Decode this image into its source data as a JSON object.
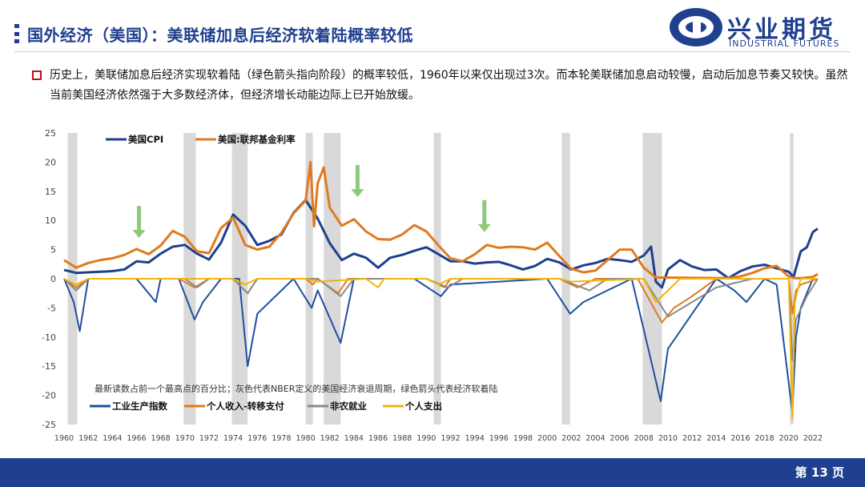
{
  "header": {
    "title": "国外经济（美国）：美联储加息后经济软着陆概率较低",
    "logo_cn": "兴业期货",
    "logo_en": "INDUSTRIAL FUTURES"
  },
  "bullet": {
    "text": "历史上，美联储加息后经济实现软着陆（绿色箭头指向阶段）的概率较低，1960年以来仅出现过3次。而本轮美联储加息启动较慢，启动后加息节奏又较快。虽然当前美国经济依然强于大多数经济体，但经济增长动能边际上已开始放缓。"
  },
  "footer": {
    "page": "第 13 页"
  },
  "colors": {
    "brand": "#1f3f8f",
    "cpi": "#1f3f8f",
    "fedfunds": "#e07a1f",
    "green_arrow": "#8cc97a",
    "recession": "#d9d9d9",
    "bullet": "#c0111a"
  },
  "chart_data": {
    "type": "line",
    "note": "最新读数占前一个最高点的百分比；灰色代表NBER定义的美国经济衰退周期，绿色箭头代表经济软着陆",
    "ylim": [
      -25,
      25
    ],
    "y_ticks": [
      25,
      20,
      15,
      10,
      5,
      0,
      -5,
      -10,
      -15,
      -20,
      -25
    ],
    "xlim": [
      1960,
      2023
    ],
    "x_ticks": [
      "1960",
      "1962",
      "1964",
      "1966",
      "1968",
      "1970",
      "1972",
      "1974",
      "1976",
      "1978",
      "1980",
      "1982",
      "1984",
      "1986",
      "1988",
      "1990",
      "1992",
      "1994",
      "1996",
      "1998",
      "2000",
      "2002",
      "2004",
      "2006",
      "2008",
      "2010",
      "2012",
      "2014",
      "2016",
      "2018",
      "2020",
      "2022"
    ],
    "recessions": [
      [
        1960.3,
        1961.1
      ],
      [
        1969.9,
        1970.9
      ],
      [
        1973.9,
        1975.2
      ],
      [
        1980.0,
        1980.6
      ],
      [
        1981.5,
        1982.9
      ],
      [
        1990.6,
        1991.2
      ],
      [
        2001.2,
        2001.9
      ],
      [
        2007.9,
        2009.5
      ],
      [
        2020.1,
        2020.4
      ]
    ],
    "soft_landing_arrows": [
      {
        "x": 1966.2,
        "y_top": 12.5,
        "y_tip": 7
      },
      {
        "x": 1984.3,
        "y_top": 19.5,
        "y_tip": 14
      },
      {
        "x": 1994.8,
        "y_top": 13.5,
        "y_tip": 8
      }
    ],
    "legend_top": [
      {
        "name": "美国CPI",
        "color": "#1f3f8f"
      },
      {
        "name": "美国:联邦基金利率",
        "color": "#e07a1f"
      }
    ],
    "legend_bottom": [
      {
        "name": "工业生产指数",
        "color": "#1f4fa0"
      },
      {
        "name": "个人收入-转移支付",
        "color": "#e07a1f"
      },
      {
        "name": "非农就业",
        "color": "#8a8a8a"
      },
      {
        "name": "个人支出",
        "color": "#f2b40a"
      }
    ],
    "series": [
      {
        "name": "美国CPI",
        "color": "#1f3f8f",
        "width": 3,
        "x": [
          1960,
          1961,
          1962,
          1963,
          1964,
          1965,
          1966,
          1967,
          1968,
          1969,
          1970,
          1971,
          1972,
          1973,
          1974,
          1975,
          1976,
          1977,
          1978,
          1979,
          1980,
          1981,
          1982,
          1983,
          1984,
          1985,
          1986,
          1987,
          1988,
          1989,
          1990,
          1991,
          1992,
          1993,
          1994,
          1995,
          1996,
          1997,
          1998,
          1999,
          2000,
          2001,
          2002,
          2003,
          2004,
          2005,
          2006,
          2007,
          2008,
          2008.6,
          2009,
          2009.5,
          2010,
          2011,
          2012,
          2013,
          2014,
          2015,
          2016,
          2017,
          2018,
          2019,
          2020,
          2020.4,
          2021,
          2021.5,
          2022,
          2022.4
        ],
        "y": [
          1.5,
          1.0,
          1.1,
          1.2,
          1.3,
          1.6,
          3.0,
          2.8,
          4.3,
          5.5,
          5.8,
          4.3,
          3.3,
          6.2,
          11.0,
          9.1,
          5.8,
          6.5,
          7.6,
          11.3,
          13.5,
          10.3,
          6.1,
          3.2,
          4.3,
          3.6,
          1.9,
          3.6,
          4.1,
          4.8,
          5.4,
          4.2,
          3.0,
          3.0,
          2.6,
          2.8,
          2.9,
          2.3,
          1.6,
          2.2,
          3.4,
          2.8,
          1.6,
          2.3,
          2.7,
          3.4,
          3.2,
          2.9,
          4.0,
          5.5,
          -0.5,
          -1.5,
          1.6,
          3.2,
          2.1,
          1.5,
          1.6,
          0.1,
          1.3,
          2.1,
          2.4,
          1.8,
          1.2,
          0.3,
          4.7,
          5.4,
          8.0,
          8.6
        ]
      },
      {
        "name": "美国:联邦基金利率",
        "color": "#e07a1f",
        "width": 3,
        "x": [
          1960,
          1961,
          1962,
          1963,
          1964,
          1965,
          1966,
          1967,
          1968,
          1969,
          1970,
          1971,
          1972,
          1973,
          1974,
          1975,
          1976,
          1977,
          1978,
          1979,
          1980,
          1980.4,
          1980.7,
          1981,
          1981.5,
          1982,
          1983,
          1984,
          1985,
          1986,
          1987,
          1988,
          1989,
          1990,
          1991,
          1992,
          1993,
          1994,
          1995,
          1996,
          1997,
          1998,
          1999,
          2000,
          2001,
          2002,
          2003,
          2004,
          2005,
          2006,
          2007,
          2008,
          2009,
          2010,
          2015,
          2016,
          2017,
          2018,
          2019,
          2020,
          2020.5,
          2021,
          2022,
          2022.4
        ],
        "y": [
          3.2,
          1.9,
          2.7,
          3.2,
          3.5,
          4.1,
          5.1,
          4.2,
          5.7,
          8.2,
          7.2,
          4.7,
          4.4,
          8.7,
          10.5,
          5.8,
          5.0,
          5.5,
          7.9,
          11.2,
          13.4,
          20.0,
          9.0,
          16.4,
          19.1,
          12.2,
          9.1,
          10.2,
          8.1,
          6.8,
          6.7,
          7.6,
          9.2,
          8.1,
          5.7,
          3.5,
          3.0,
          4.2,
          5.8,
          5.3,
          5.5,
          5.4,
          5.0,
          6.2,
          3.9,
          1.7,
          1.1,
          1.4,
          3.2,
          5.0,
          5.0,
          1.9,
          0.2,
          0.2,
          0.1,
          0.4,
          1.0,
          1.8,
          2.2,
          0.4,
          0.1,
          0.1,
          0.3,
          0.8
        ]
      },
      {
        "name": "工业生产指数",
        "color": "#1f4fa0",
        "width": 2,
        "x": [
          1960,
          1960.8,
          1961.3,
          1962,
          1966,
          1967,
          1967.6,
          1968,
          1969.5,
          1970.8,
          1971.5,
          1973,
          1974.5,
          1975.2,
          1976,
          1979,
          1980.5,
          1981,
          1982.9,
          1984,
          1989,
          1991.2,
          1992,
          2000,
          2001.9,
          2003,
          2007,
          2009.4,
          2010,
          2014,
          2015.5,
          2016.5,
          2018,
          2019,
          2020.3,
          2020.6,
          2021,
          2022,
          2022.4
        ],
        "y": [
          0,
          -4,
          -9,
          0,
          0,
          -2.5,
          -4,
          0,
          0,
          -7,
          -4,
          0,
          0,
          -15,
          -6,
          0,
          -5,
          -2,
          -11,
          0,
          0,
          -3,
          -1,
          0,
          -6,
          -4,
          0,
          -21,
          -12,
          0,
          -2,
          -4,
          0,
          -1,
          -23,
          -10,
          -5,
          0,
          0
        ]
      },
      {
        "name": "个人收入-转移支付",
        "color": "#e07a1f",
        "width": 2,
        "x": [
          1960,
          1961,
          1962,
          1969.5,
          1970.8,
          1972,
          1974,
          1975.2,
          1976,
          1980,
          1980.6,
          1981,
          1982.7,
          1983.5,
          1990,
          1991.5,
          1992,
          2001,
          2002.5,
          2004,
          2007.5,
          2009.5,
          2010.5,
          2012,
          2014,
          2020,
          2020.3,
          2020.6,
          2021,
          2022.4
        ],
        "y": [
          0,
          -1.5,
          0,
          0,
          -1.5,
          0,
          0,
          -2.5,
          0,
          0,
          -1,
          0,
          -2.5,
          0,
          0,
          -1.5,
          0,
          0,
          -1.5,
          0,
          0,
          -7.5,
          -5,
          -3,
          0,
          0,
          -6,
          -2,
          -1,
          0
        ]
      },
      {
        "name": "非农就业",
        "color": "#8a8a8a",
        "width": 2,
        "x": [
          1960,
          1961,
          1962,
          1970,
          1971,
          1972,
          1974,
          1975.2,
          1976,
          1981,
          1982.9,
          1984,
          1990,
          1991.8,
          1993,
          2001,
          2003.5,
          2005,
          2008,
          2010,
          2012,
          2014,
          2017,
          2020,
          2020.3,
          2020.6,
          2021.5,
          2022.4
        ],
        "y": [
          0,
          -2,
          0,
          0,
          -1.5,
          0,
          0,
          -2.5,
          0,
          0,
          -3,
          0,
          0,
          -1.5,
          0,
          0,
          -2,
          0,
          0,
          -6.5,
          -4,
          -1.5,
          0,
          0,
          -14,
          -7,
          -3,
          0
        ]
      },
      {
        "name": "个人支出",
        "color": "#f2b40a",
        "width": 2,
        "x": [
          1960,
          1961,
          1962,
          1970,
          1972,
          1974,
          1975,
          1976,
          1980,
          1981,
          1985,
          1986,
          1986.5,
          1990,
          1991,
          1992,
          2001,
          2002,
          2008,
          2009,
          2010,
          2011,
          2020,
          2020.3,
          2020.5,
          2020.8,
          2021,
          2022.4
        ],
        "y": [
          0,
          -1,
          0,
          0,
          0,
          0,
          -1,
          0,
          0,
          -0.5,
          0,
          -1.5,
          0,
          0,
          -1,
          0,
          0,
          -0.5,
          0,
          -4,
          -2,
          0,
          0,
          -24,
          -4,
          -1.5,
          0,
          0
        ]
      }
    ]
  }
}
